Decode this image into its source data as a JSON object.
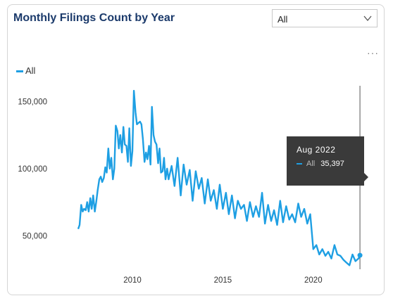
{
  "card": {
    "title": "Monthly Filings Count by Year",
    "dropdown_value": "All",
    "more_label": "···"
  },
  "tooltip": {
    "date": "Aug 2022",
    "series": "All",
    "value": "35,397"
  },
  "colors": {
    "line": "#1e9fe3",
    "title": "#1b3a6b",
    "tooltip_bg": "#3a3a3a"
  },
  "chart_data": {
    "type": "line",
    "title": "Monthly Filings Count by Year",
    "xlabel": "",
    "ylabel": "",
    "legend": "top-left",
    "grid": false,
    "x_ticks": [
      2010,
      2015,
      2020
    ],
    "x_tick_labels": [
      "2010",
      "2015",
      "2020"
    ],
    "y_ticks": [
      50000,
      100000,
      150000
    ],
    "y_tick_labels": [
      "50,000",
      "100,000",
      "150,000"
    ],
    "xlim": [
      2005.6,
      2023.2
    ],
    "ylim": [
      25000,
      168000
    ],
    "series": [
      {
        "name": "All",
        "x": [
          2007.0,
          2007.08,
          2007.17,
          2007.25,
          2007.33,
          2007.42,
          2007.5,
          2007.58,
          2007.67,
          2007.75,
          2007.83,
          2007.92,
          2008.0,
          2008.08,
          2008.17,
          2008.25,
          2008.33,
          2008.42,
          2008.5,
          2008.58,
          2008.67,
          2008.75,
          2008.83,
          2008.92,
          2009.0,
          2009.08,
          2009.17,
          2009.25,
          2009.33,
          2009.42,
          2009.5,
          2009.58,
          2009.67,
          2009.75,
          2009.83,
          2009.92,
          2010.0,
          2010.08,
          2010.17,
          2010.25,
          2010.33,
          2010.42,
          2010.5,
          2010.58,
          2010.67,
          2010.75,
          2010.83,
          2010.92,
          2011.0,
          2011.08,
          2011.17,
          2011.25,
          2011.33,
          2011.42,
          2011.5,
          2011.58,
          2011.67,
          2011.75,
          2011.83,
          2011.92,
          2012.0,
          2012.17,
          2012.33,
          2012.5,
          2012.67,
          2012.83,
          2013.0,
          2013.17,
          2013.33,
          2013.5,
          2013.67,
          2013.83,
          2014.0,
          2014.17,
          2014.33,
          2014.5,
          2014.67,
          2014.83,
          2015.0,
          2015.17,
          2015.33,
          2015.5,
          2015.67,
          2015.83,
          2016.0,
          2016.17,
          2016.33,
          2016.5,
          2016.67,
          2016.83,
          2017.0,
          2017.17,
          2017.33,
          2017.5,
          2017.67,
          2017.83,
          2018.0,
          2018.17,
          2018.33,
          2018.5,
          2018.67,
          2018.83,
          2019.0,
          2019.17,
          2019.33,
          2019.5,
          2019.67,
          2019.83,
          2020.0,
          2020.17,
          2020.33,
          2020.5,
          2020.67,
          2020.83,
          2021.0,
          2021.17,
          2021.33,
          2021.5,
          2021.67,
          2021.83,
          2022.0,
          2022.17,
          2022.33,
          2022.5,
          2022.58
        ],
        "y": [
          55000,
          58000,
          73000,
          68000,
          70000,
          69000,
          75000,
          68000,
          78000,
          70000,
          80000,
          68000,
          75000,
          84000,
          92000,
          94000,
          90000,
          93000,
          101000,
          97000,
          115000,
          100000,
          108000,
          92000,
          100000,
          132000,
          128000,
          115000,
          125000,
          112000,
          131000,
          118000,
          117000,
          105000,
          130000,
          102000,
          113000,
          158000,
          142000,
          133000,
          134000,
          135000,
          133000,
          122000,
          105000,
          112000,
          107000,
          117000,
          103000,
          146000,
          125000,
          120000,
          118000,
          104000,
          115000,
          97000,
          98000,
          108000,
          92000,
          100000,
          92000,
          102000,
          87000,
          108000,
          80000,
          103000,
          88000,
          99000,
          76000,
          98000,
          85000,
          93000,
          74000,
          92000,
          76000,
          84000,
          70000,
          88000,
          70000,
          82000,
          66000,
          80000,
          63000,
          76000,
          70000,
          73000,
          61000,
          75000,
          64000,
          72000,
          64000,
          82000,
          59000,
          73000,
          61000,
          69000,
          58000,
          76000,
          60000,
          72000,
          62000,
          66000,
          60000,
          74000,
          64000,
          70000,
          59000,
          66000,
          40000,
          43000,
          36000,
          40000,
          35000,
          38000,
          33000,
          43000,
          36000,
          35000,
          32000,
          30000,
          28000,
          36000,
          31000,
          33000,
          35397
        ]
      }
    ]
  }
}
